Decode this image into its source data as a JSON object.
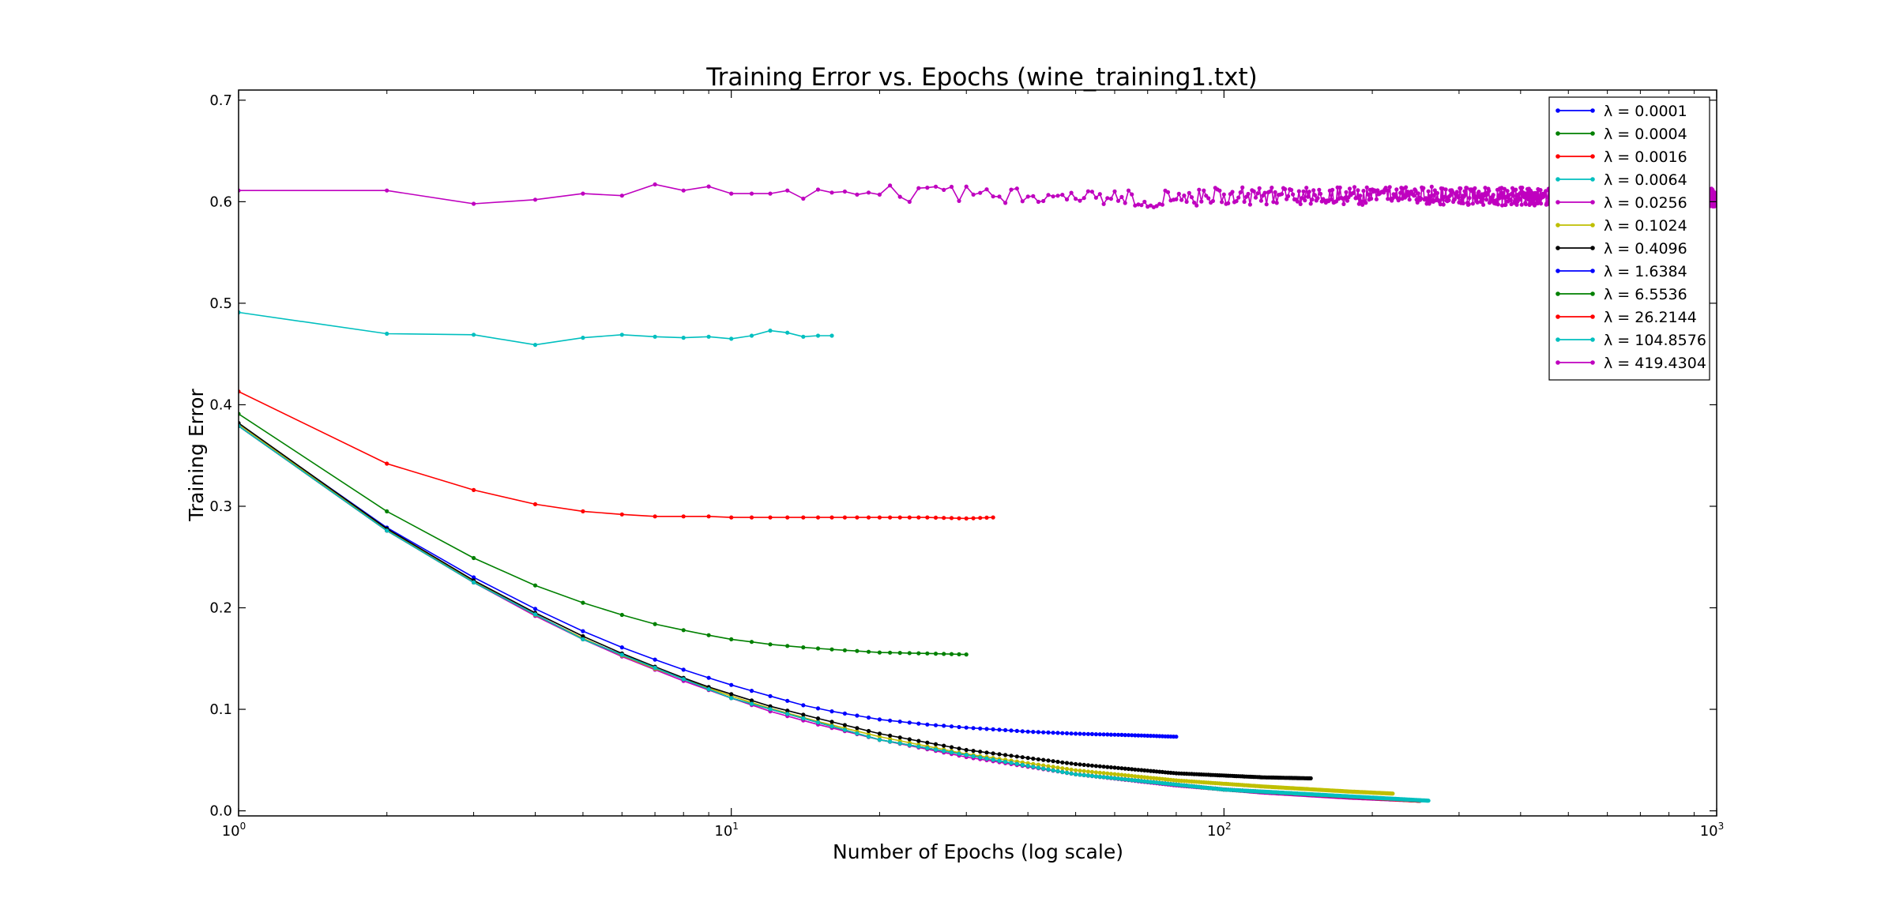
{
  "chart_data": {
    "type": "line",
    "title": "Training Error vs. Epochs (wine_training1.txt)",
    "xlabel": "Number of Epochs (log scale)",
    "ylabel": "Training Error",
    "xscale": "log",
    "xlim": [
      1,
      1000
    ],
    "ylim": [
      -0.005,
      0.71
    ],
    "grid": false,
    "legend_position": "top-right",
    "x_ticks": [
      {
        "value": 1,
        "base": "10",
        "exp": "0"
      },
      {
        "value": 10,
        "base": "10",
        "exp": "1"
      },
      {
        "value": 100,
        "base": "10",
        "exp": "2"
      },
      {
        "value": 1000,
        "base": "10",
        "exp": "3"
      }
    ],
    "y_ticks": [
      "0.0",
      "0.1",
      "0.2",
      "0.3",
      "0.4",
      "0.5",
      "0.6",
      "0.7"
    ],
    "series": [
      {
        "name": "λ = 0.0001",
        "color": "#0000ff",
        "last_epoch": 80,
        "x": [
          1,
          2,
          3,
          4,
          5,
          6,
          7,
          8,
          9,
          10,
          12,
          14,
          16,
          20,
          25,
          30,
          40,
          50,
          60,
          70,
          80
        ],
        "y": [
          0.381,
          0.279,
          0.23,
          0.199,
          0.177,
          0.161,
          0.149,
          0.139,
          0.131,
          0.124,
          0.113,
          0.104,
          0.098,
          0.09,
          0.085,
          0.082,
          0.078,
          0.076,
          0.075,
          0.074,
          0.073
        ]
      },
      {
        "name": "λ = 0.0004",
        "color": "#008000",
        "last_epoch": 30,
        "x": [
          1,
          2,
          3,
          4,
          5,
          6,
          7,
          8,
          9,
          10,
          12,
          14,
          16,
          20,
          25,
          30
        ],
        "y": [
          0.391,
          0.295,
          0.249,
          0.222,
          0.205,
          0.193,
          0.184,
          0.178,
          0.173,
          0.169,
          0.164,
          0.161,
          0.159,
          0.156,
          0.155,
          0.154
        ]
      },
      {
        "name": "λ = 0.0016",
        "color": "#ff0000",
        "last_epoch": 34,
        "x": [
          1,
          2,
          3,
          4,
          5,
          6,
          7,
          8,
          9,
          10,
          12,
          14,
          16,
          20,
          25,
          30,
          34
        ],
        "y": [
          0.413,
          0.342,
          0.316,
          0.302,
          0.295,
          0.292,
          0.29,
          0.29,
          0.29,
          0.289,
          0.289,
          0.289,
          0.289,
          0.289,
          0.289,
          0.288,
          0.289
        ]
      },
      {
        "name": "λ = 0.0064",
        "color": "#00bfbf",
        "last_epoch": 16,
        "x": [
          1,
          2,
          3,
          4,
          5,
          6,
          7,
          8,
          9,
          10,
          11,
          12,
          13,
          14,
          15,
          16
        ],
        "y": [
          0.491,
          0.47,
          0.469,
          0.459,
          0.466,
          0.469,
          0.467,
          0.466,
          0.467,
          0.465,
          0.468,
          0.473,
          0.471,
          0.467,
          0.468,
          0.468
        ]
      },
      {
        "name": "λ = 0.0256",
        "color": "#bf00bf",
        "last_epoch": 250,
        "x": [
          1,
          2,
          3,
          4,
          5,
          6,
          7,
          8,
          9,
          10,
          12,
          15,
          20,
          30,
          50,
          80,
          120,
          180,
          250
        ],
        "y": [
          0.379,
          0.276,
          0.225,
          0.192,
          0.169,
          0.152,
          0.139,
          0.128,
          0.119,
          0.111,
          0.098,
          0.085,
          0.07,
          0.053,
          0.036,
          0.025,
          0.018,
          0.013,
          0.01
        ]
      },
      {
        "name": "λ = 0.1024",
        "color": "#bfbf00",
        "last_epoch": 220,
        "x": [
          1,
          2,
          3,
          4,
          5,
          6,
          7,
          8,
          9,
          10,
          12,
          15,
          20,
          30,
          50,
          80,
          120,
          180,
          220
        ],
        "y": [
          0.381,
          0.277,
          0.226,
          0.193,
          0.17,
          0.153,
          0.14,
          0.13,
          0.121,
          0.113,
          0.101,
          0.088,
          0.073,
          0.056,
          0.04,
          0.03,
          0.024,
          0.019,
          0.017
        ]
      },
      {
        "name": "λ = 0.4096",
        "color": "#000000",
        "last_epoch": 150,
        "x": [
          1,
          2,
          3,
          4,
          5,
          6,
          7,
          8,
          9,
          10,
          12,
          15,
          20,
          30,
          50,
          80,
          120,
          150
        ],
        "y": [
          0.382,
          0.278,
          0.227,
          0.195,
          0.172,
          0.155,
          0.142,
          0.131,
          0.122,
          0.115,
          0.103,
          0.091,
          0.076,
          0.06,
          0.046,
          0.037,
          0.033,
          0.032
        ]
      },
      {
        "name": "λ = 1.6384",
        "color": "#0000ff",
        "last_epoch": 250,
        "x": [
          1,
          2,
          3,
          5,
          10,
          20,
          50,
          100,
          250
        ],
        "y": [
          0.379,
          0.276,
          0.225,
          0.169,
          0.111,
          0.07,
          0.036,
          0.021,
          0.01
        ]
      },
      {
        "name": "λ = 6.5536",
        "color": "#008000",
        "last_epoch": 250,
        "x": [
          1,
          2,
          3,
          5,
          10,
          20,
          50,
          100,
          250
        ],
        "y": [
          0.379,
          0.276,
          0.225,
          0.169,
          0.111,
          0.07,
          0.036,
          0.021,
          0.01
        ]
      },
      {
        "name": "λ = 26.2144",
        "color": "#ff0000",
        "last_epoch": 250,
        "x": [
          1,
          2,
          3,
          5,
          10,
          20,
          50,
          100,
          250
        ],
        "y": [
          0.379,
          0.276,
          0.225,
          0.169,
          0.111,
          0.07,
          0.036,
          0.021,
          0.01
        ]
      },
      {
        "name": "λ = 104.8576",
        "color": "#00bfbf",
        "last_epoch": 260,
        "x": [
          1,
          2,
          3,
          5,
          10,
          20,
          50,
          100,
          260
        ],
        "y": [
          0.379,
          0.276,
          0.225,
          0.169,
          0.111,
          0.07,
          0.036,
          0.021,
          0.01
        ]
      },
      {
        "name": "λ = 419.4304",
        "color": "#bf00bf",
        "last_epoch": 1000,
        "x": [
          1,
          2,
          3,
          4,
          5,
          6,
          7,
          8,
          9,
          10,
          11,
          12,
          13,
          14,
          15,
          16,
          17,
          18,
          19,
          20,
          25,
          30,
          40,
          50,
          60,
          80,
          100,
          150,
          200,
          300,
          500,
          700,
          1000
        ],
        "y": [
          0.611,
          0.611,
          0.598,
          0.602,
          0.608,
          0.606,
          0.617,
          0.611,
          0.615,
          0.608,
          0.608,
          0.608,
          0.611,
          0.603,
          0.612,
          0.609,
          0.61,
          0.607,
          0.609,
          0.607,
          0.61,
          0.606,
          0.604,
          0.603,
          0.604,
          0.603,
          0.606,
          0.605,
          0.606,
          0.606,
          0.604,
          0.605,
          0.604
        ]
      }
    ]
  }
}
